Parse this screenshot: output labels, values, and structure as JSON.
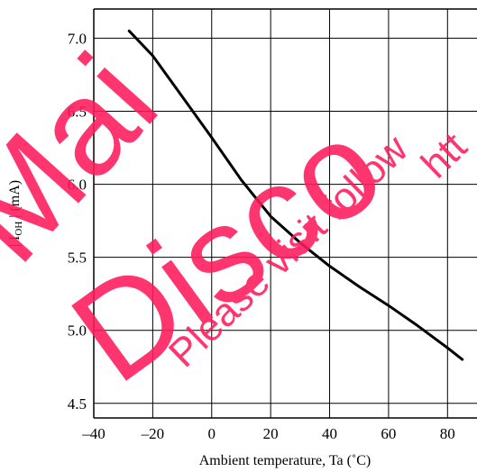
{
  "chart_data": {
    "type": "line",
    "title": "",
    "xlabel": "Ambient temperature, Ta (˚C)",
    "ylabel": {
      "pre": "| I",
      "sub": "OH",
      "post": " | (mA)"
    },
    "xlim": [
      -40,
      90
    ],
    "ylim": [
      4.4,
      7.2
    ],
    "xticks": [
      -40,
      -20,
      0,
      20,
      40,
      60,
      80
    ],
    "xtick_labels": [
      "–40",
      "–20",
      "0",
      "20",
      "40",
      "60",
      "80"
    ],
    "yticks": [
      4.5,
      5.0,
      5.5,
      6.0,
      6.5,
      7.0
    ],
    "ytick_labels": [
      "4.5",
      "5.0",
      "5.5",
      "6.0",
      "6.5",
      "7.0"
    ],
    "grid": true,
    "series": [
      {
        "color": "#000000",
        "x": [
          -28,
          -20,
          -10,
          0,
          10,
          20,
          30,
          40,
          50,
          60,
          70,
          80,
          85
        ],
        "y": [
          7.05,
          6.88,
          6.6,
          6.32,
          6.03,
          5.78,
          5.6,
          5.44,
          5.3,
          5.17,
          5.03,
          4.88,
          4.8
        ]
      }
    ]
  },
  "watermark": {
    "color": "#ff1a5c",
    "lines": [
      "Mai",
      "Disco",
      "Please visit follow",
      "htt"
    ]
  }
}
